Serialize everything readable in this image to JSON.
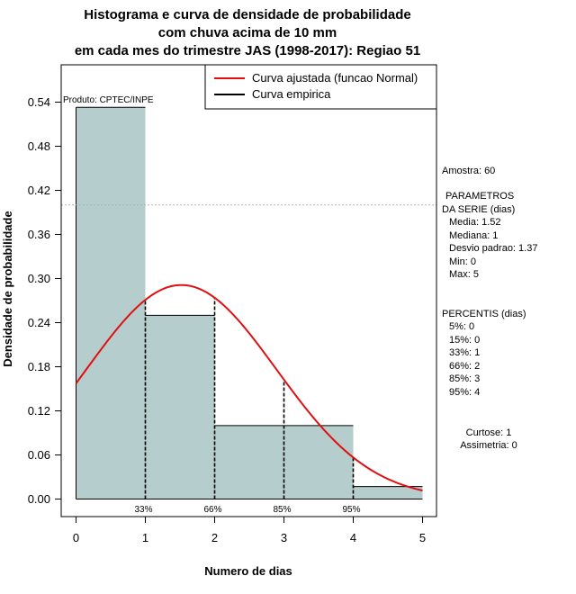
{
  "chart_data": {
    "type": "bar",
    "title_lines": [
      "Histograma e curva de densidade de probabilidade",
      "com chuva acima de 10 mm",
      "em cada mes do trimestre JAS (1998-2017): Regiao 51"
    ],
    "xlabel": "Numero de dias",
    "ylabel": "Densidade de probabilidade",
    "xlim": [
      0,
      5
    ],
    "ylim": [
      0,
      0.54
    ],
    "x_ticks": [
      "0",
      "1",
      "2",
      "3",
      "4",
      "5"
    ],
    "y_ticks": [
      "0.00",
      "0.06",
      "0.12",
      "0.18",
      "0.24",
      "0.30",
      "0.36",
      "0.42",
      "0.48",
      "0.54"
    ],
    "bins": [
      {
        "from": 0,
        "to": 1,
        "density": 0.533
      },
      {
        "from": 1,
        "to": 2,
        "density": 0.25
      },
      {
        "from": 2,
        "to": 3,
        "density": 0.1
      },
      {
        "from": 3,
        "to": 4,
        "density": 0.1
      },
      {
        "from": 4,
        "to": 5,
        "density": 0.017
      }
    ],
    "fitted_curve": {
      "name": "Curva ajustada (funcao Normal)",
      "mean": 1.52,
      "sd": 1.37,
      "color": "#e01010"
    },
    "empirical_curve": {
      "name": "Curva empirica",
      "color": "#000000"
    },
    "bar_color": "#b5cdcc",
    "percentile_markers": [
      {
        "label": "33%",
        "x": 1
      },
      {
        "label": "66%",
        "x": 2
      },
      {
        "label": "85%",
        "x": 3
      },
      {
        "label": "95%",
        "x": 4
      }
    ],
    "reference_line_y": 0.4,
    "credit": "Produto: CPTEC/INPE",
    "legend_position": "top-right"
  },
  "side_panel": {
    "sample": "Amostra: 60",
    "params_title_1": "PARAMETROS",
    "params_title_2": "DA SERIE (dias)",
    "params": [
      "Media: 1.52",
      "Mediana: 1",
      "Desvio padrao: 1.37",
      "Min: 0",
      "Max: 5"
    ],
    "percentis_title": "PERCENTIS (dias)",
    "percentis": [
      "5%: 0",
      "15%: 0",
      "33%: 1",
      "66%: 2",
      "85%: 3",
      "95%: 4"
    ],
    "kurtosis": "Curtose: 1",
    "skewness": "Assimetria: 0"
  }
}
